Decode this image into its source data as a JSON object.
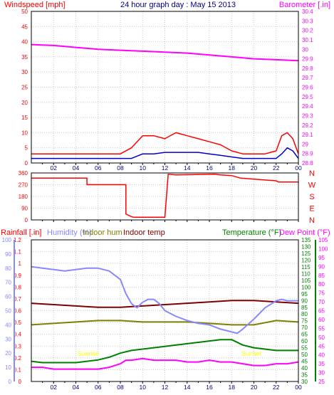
{
  "header": {
    "windspeed_label": "Windspeed [mph]",
    "title": "24 hour graph day : May 15 2013",
    "barometer_label": "Barometer [.in]"
  },
  "lower_header": {
    "rainfall_label": "Rainfall [.in]",
    "humidity_label": "Humidity (%)",
    "indoor_hum_label": "Indoor hum",
    "indoor_temp_label": "Indoor temp",
    "temperature_label": "Temperature (°F)",
    "dewpoint_label": "Dew Point (°F)"
  },
  "annotations": {
    "sunrise": "Sunrise",
    "sunset": "Sunset"
  },
  "colors": {
    "wind": "#ff0000",
    "gust": "#ff0000",
    "wind_avg": "#0000cc",
    "barometer": "#ff00ff",
    "direction": "#ff0000",
    "rain": "#ff0000",
    "humidity": "#8888ff",
    "indoor_hum": "#808000",
    "indoor_temp": "#800000",
    "temperature": "#008000",
    "dewpoint": "#ff00ff",
    "title": "#000080",
    "sun": "#ffff00"
  },
  "chart_data": [
    {
      "type": "line",
      "panel": "wind-barometer",
      "title": "24 hour graph day : May 15 2013",
      "xticks": [
        "02",
        "04",
        "06",
        "08",
        "10",
        "12",
        "14",
        "16",
        "18",
        "20",
        "22",
        "00"
      ],
      "x_range_hours": [
        0,
        24
      ],
      "ylabel_left": "Windspeed [mph]",
      "ylim_left": [
        0,
        50
      ],
      "yticks_left": [
        "0",
        "5",
        "10",
        "15",
        "20",
        "25",
        "30",
        "35",
        "40",
        "45",
        "50"
      ],
      "ylabel_right": "Barometer [.in]",
      "ylim_right": [
        28.8,
        30.4
      ],
      "yticks_right": [
        "28.8",
        "28.9",
        "29",
        "29.1",
        "29.2",
        "29.3",
        "29.4",
        "29.5",
        "29.6",
        "29.7",
        "29.8",
        "29.9",
        "30",
        "30.1",
        "30.2",
        "30.3",
        "30.4"
      ],
      "grid": true,
      "series": [
        {
          "name": "Windspeed [mph]",
          "axis": "left",
          "x": [
            0,
            1,
            2,
            3,
            4,
            5,
            6,
            7,
            8,
            9,
            10,
            11,
            12,
            13,
            14,
            15,
            16,
            17,
            18,
            19,
            20,
            21,
            22,
            22.5,
            23,
            23.5,
            24
          ],
          "values": [
            1.5,
            1.5,
            1.5,
            1.5,
            1.5,
            1.5,
            1.5,
            1.5,
            1.5,
            1.5,
            3,
            3,
            3.5,
            3.5,
            3.5,
            3.5,
            3,
            2.5,
            2,
            1.5,
            1.5,
            1.5,
            1.5,
            3,
            5,
            4,
            1.5
          ]
        },
        {
          "name": "Gust",
          "axis": "left",
          "x": [
            0,
            1,
            2,
            3,
            4,
            5,
            6,
            7,
            8,
            9,
            10,
            11,
            12,
            13,
            14,
            15,
            16,
            17,
            18,
            19,
            20,
            21,
            22,
            22.5,
            23,
            23.5,
            24
          ],
          "values": [
            3,
            3,
            3,
            3,
            3,
            3,
            3,
            3,
            3,
            5,
            9,
            9,
            8,
            10,
            9,
            8,
            7,
            6,
            4,
            3,
            3,
            3,
            4,
            9,
            10,
            8,
            3
          ]
        },
        {
          "name": "Barometer [.in]",
          "axis": "right",
          "x": [
            0,
            2,
            4,
            6,
            8,
            10,
            12,
            14,
            16,
            18,
            20,
            22,
            24
          ],
          "values": [
            30.05,
            30.04,
            30.02,
            30.0,
            29.99,
            29.98,
            29.97,
            29.96,
            29.94,
            29.92,
            29.9,
            29.89,
            29.88
          ]
        }
      ]
    },
    {
      "type": "line",
      "panel": "wind-direction",
      "xticks": [
        "02",
        "04",
        "06",
        "08",
        "10",
        "12",
        "14",
        "16",
        "18",
        "20",
        "22",
        "00"
      ],
      "x_range_hours": [
        0,
        24
      ],
      "ylim": [
        0,
        360
      ],
      "yticks": [
        "0",
        "90",
        "180",
        "270",
        "360"
      ],
      "compass_labels": [
        "N",
        "W",
        "S",
        "E",
        "N"
      ],
      "grid": true,
      "series": [
        {
          "name": "Direction",
          "x": [
            0,
            5,
            5,
            8.5,
            8.5,
            9,
            9.2,
            12,
            12.3,
            13,
            16.5,
            17,
            18,
            18.8,
            22,
            22.2,
            24
          ],
          "values": [
            320,
            320,
            270,
            270,
            45,
            25,
            20,
            20,
            350,
            345,
            350,
            345,
            340,
            320,
            300,
            290,
            290
          ]
        }
      ]
    },
    {
      "type": "line",
      "panel": "rain-humidity-temperature",
      "xticks": [
        "02",
        "04",
        "06",
        "08",
        "10",
        "12",
        "14",
        "16",
        "18",
        "20",
        "22",
        "00"
      ],
      "x_range_hours": [
        0,
        24
      ],
      "ylabel_rain": "Rainfall [.in]",
      "ylim_rain": [
        0,
        1.2
      ],
      "yticks_rain": [
        "0",
        "0.1",
        "0.2",
        "0.3",
        "0.4",
        "0.5",
        "0.6",
        "0.7",
        "0.8",
        "0.9",
        "1",
        "1.1",
        "1.2"
      ],
      "ylim_humidity": [
        0,
        100
      ],
      "yticks_humidity": [
        "0",
        "10",
        "20",
        "30",
        "40",
        "50",
        "60",
        "70",
        "80",
        "90",
        "100"
      ],
      "ylim_temperature": [
        30,
        135
      ],
      "yticks_temperature": [
        "30",
        "35",
        "40",
        "45",
        "50",
        "55",
        "60",
        "65",
        "70",
        "75",
        "80",
        "85",
        "90",
        "95",
        "100",
        "105",
        "110",
        "115",
        "120",
        "125",
        "130",
        "135"
      ],
      "ylim_dewpoint": [
        25,
        105
      ],
      "yticks_dewpoint": [
        "25",
        "30",
        "35",
        "40",
        "45",
        "50",
        "55",
        "60",
        "65",
        "70",
        "75",
        "80",
        "85",
        "90",
        "95",
        "100",
        "105"
      ],
      "grid": true,
      "series": [
        {
          "name": "Rainfall [.in]",
          "axis": "rain",
          "x": [
            0,
            24
          ],
          "values": [
            0,
            0
          ]
        },
        {
          "name": "Humidity (%)",
          "axis": "humidity",
          "x": [
            0,
            1,
            2,
            3,
            4,
            5,
            6,
            7,
            8,
            8.5,
            9,
            9.5,
            10,
            10.5,
            11,
            11.5,
            12,
            13,
            14,
            15,
            16,
            17,
            18,
            18.5,
            19,
            20,
            21,
            22,
            22.5,
            23,
            24
          ],
          "values": [
            81,
            80,
            79,
            78,
            79,
            80,
            80,
            78,
            72,
            62,
            55,
            52,
            56,
            58,
            58,
            55,
            50,
            46,
            43,
            41,
            40,
            37,
            35,
            34,
            37,
            44,
            52,
            57,
            58,
            57,
            57
          ]
        },
        {
          "name": "Indoor hum",
          "axis": "humidity",
          "x": [
            0,
            2,
            4,
            6,
            8,
            10,
            12,
            14,
            16,
            18,
            20,
            22,
            24
          ],
          "values": [
            40,
            41,
            42,
            43,
            43,
            42,
            42,
            42,
            41,
            40,
            40,
            43,
            42
          ]
        },
        {
          "name": "Indoor temp",
          "axis": "temperature",
          "x": [
            0,
            2,
            4,
            6,
            8,
            10,
            12,
            14,
            16,
            18,
            20,
            22,
            24
          ],
          "values": [
            88,
            87,
            86,
            85,
            85,
            86,
            87,
            88,
            89,
            90,
            90,
            89,
            88
          ]
        },
        {
          "name": "Temperature (°F)",
          "axis": "temperature",
          "x": [
            0,
            1,
            2,
            3,
            4,
            5,
            6,
            7,
            8,
            9,
            10,
            11,
            12,
            13,
            14,
            15,
            16,
            17,
            18,
            19,
            20,
            21,
            22,
            23,
            24
          ],
          "values": [
            45,
            44,
            44,
            44,
            44,
            45,
            46,
            48,
            51,
            53,
            54,
            55,
            56,
            57,
            58,
            59,
            60,
            61,
            61,
            57,
            55,
            54,
            53,
            53,
            53
          ]
        },
        {
          "name": "Dew Point (°F)",
          "axis": "dewpoint",
          "x": [
            0,
            1,
            2,
            3,
            4,
            5,
            6,
            7,
            8,
            8.5,
            9,
            10,
            11,
            12,
            13,
            14,
            15,
            16,
            17,
            18,
            19,
            20,
            21,
            22,
            23,
            24
          ],
          "values": [
            33,
            33,
            32,
            32,
            32,
            32,
            32,
            33,
            35,
            37,
            37,
            38,
            37,
            37,
            37,
            36,
            36,
            37,
            36,
            36,
            35,
            34,
            34,
            35,
            35,
            36
          ]
        }
      ]
    }
  ]
}
